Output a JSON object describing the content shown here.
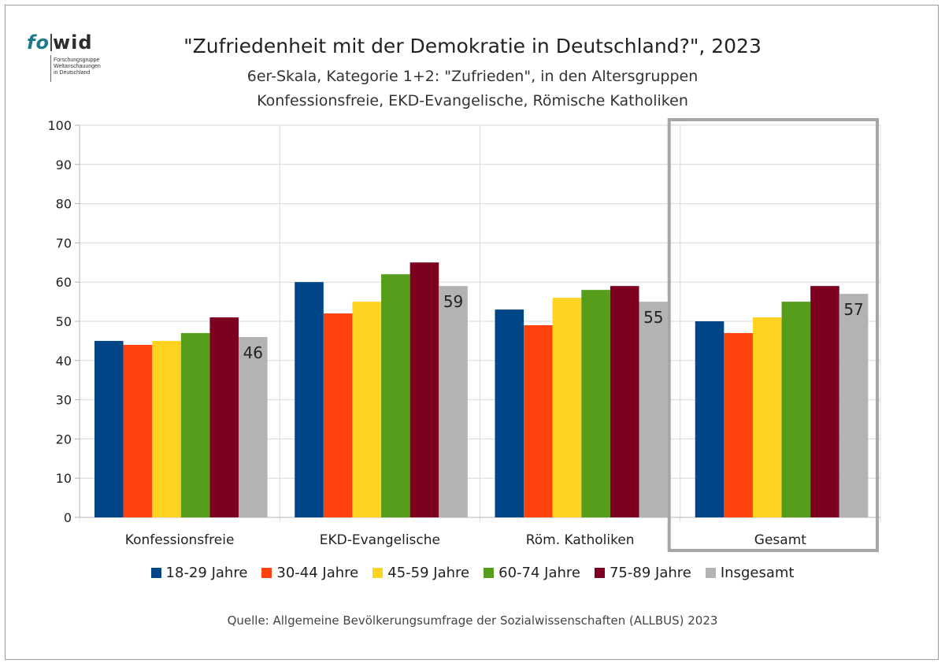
{
  "logo": {
    "brand_left": "fo",
    "brand_right": "wid",
    "tagline": [
      "Forschungsgruppe",
      "Weltanschauungen",
      "in Deutschland"
    ]
  },
  "title": "\"Zufriedenheit mit der Demokratie in Deutschland?\", 2023",
  "subtitle_line1": "6er-Skala, Kategorie 1+2: \"Zufrieden\", in den Altersgruppen",
  "subtitle_line2": "Konfessionsfreie, EKD-Evangelische, Römische Katholiken",
  "source": "Quelle: Allgemeine Bevölkerungsumfrage der Sozialwissenschaften (ALLBUS) 2023",
  "colors": {
    "series": [
      "#004586",
      "#ff420e",
      "#ffd320",
      "#579d1c",
      "#7e0021",
      "#b3b3b3"
    ],
    "highlight_box": "#a6a6a6",
    "grid": "#d9d9d9",
    "axis": "#b3b3b3"
  },
  "chart_data": {
    "type": "bar",
    "title": "\"Zufriedenheit mit der Demokratie in Deutschland?\", 2023",
    "categories": [
      "Konfessionsfreie",
      "EKD-Evangelische",
      "Röm. Katholiken",
      "Gesamt"
    ],
    "series": [
      {
        "name": "18-29 Jahre",
        "values": [
          45,
          60,
          53,
          50
        ]
      },
      {
        "name": "30-44 Jahre",
        "values": [
          44,
          52,
          49,
          47
        ]
      },
      {
        "name": "45-59 Jahre",
        "values": [
          45,
          55,
          56,
          51
        ]
      },
      {
        "name": "60-74 Jahre",
        "values": [
          47,
          62,
          58,
          55
        ]
      },
      {
        "name": "75-89 Jahre",
        "values": [
          51,
          65,
          59,
          59
        ]
      },
      {
        "name": "Insgesamt",
        "values": [
          46,
          59,
          55,
          57
        ]
      }
    ],
    "labeled_series": "Insgesamt",
    "ylim": [
      0,
      100
    ],
    "yticks": [
      0,
      10,
      20,
      30,
      40,
      50,
      60,
      70,
      80,
      90,
      100
    ],
    "grid": true,
    "highlighted_category": "Gesamt",
    "legend_position": "bottom"
  }
}
